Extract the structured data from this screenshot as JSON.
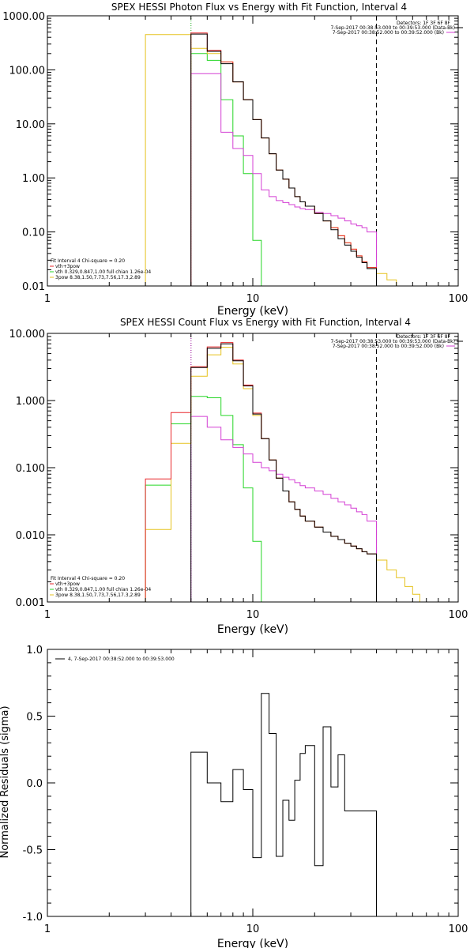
{
  "colors": {
    "red": "#e8262a",
    "green": "#26d626",
    "yellow": "#e6c21e",
    "magenta": "#d43fd4",
    "black": "#000000"
  },
  "chart_data": [
    {
      "type": "line",
      "title": "SPEX HESSI Photon Flux vs Energy with Fit Function, Interval 4",
      "xlabel": "Energy (keV)",
      "ylabel": "",
      "xscale": "log",
      "yscale": "log",
      "xlim": [
        1,
        100
      ],
      "ylim": [
        0.01,
        1000
      ],
      "xticks": [
        "1",
        "10",
        "100"
      ],
      "yticks": [
        "0.01",
        "0.10",
        "1.00",
        "10.00",
        "100.00",
        "1000.00"
      ],
      "header": {
        "detectors": "Detectors: 1F 3F 6F 8F",
        "line1": "7-Sep-2017 00:38:53.000 to 00:39:53.000 (Data-Bk)",
        "line2": "7-Sep-2017 00:38:52.000 to 00:39:52.000 (Bk)"
      },
      "fit_text": {
        "line0": "Fit Interval 4   Chi-square = 0.20",
        "line1": "vth+3pow",
        "line2": "vth 0.329,0.847,1.00  full chian 1.26e-04",
        "line3": "3pow 8.38,1.50,7.73,7.56,17.3,2.89"
      },
      "vlines": [
        {
          "x": 5,
          "style": "dotted",
          "color": "magenta"
        },
        {
          "x": 5,
          "style": "dotted",
          "color": "green"
        },
        {
          "x": 40,
          "style": "dashed",
          "color": "black"
        }
      ],
      "edges": [
        3,
        4,
        5,
        6,
        7,
        8,
        9,
        10,
        11,
        12,
        13,
        14,
        15,
        16,
        17,
        18,
        20,
        22,
        24,
        26,
        28,
        30,
        32,
        34,
        36,
        40,
        45,
        50,
        55,
        60
      ],
      "series": [
        {
          "name": "",
          "color": "green",
          "values": [
            null,
            null,
            200,
            150,
            28,
            6,
            1.2,
            0.07,
            null,
            null,
            null,
            null,
            null,
            null,
            null,
            null,
            null,
            null,
            null,
            null,
            null,
            null,
            null,
            null,
            null,
            null,
            null,
            null,
            null
          ]
        },
        {
          "name": "",
          "color": "magenta",
          "values": [
            null,
            null,
            85,
            85,
            7,
            3.5,
            2.6,
            1.2,
            0.6,
            0.45,
            0.38,
            0.35,
            0.32,
            0.29,
            0.27,
            0.26,
            0.23,
            0.22,
            0.2,
            0.18,
            0.16,
            0.14,
            0.13,
            0.12,
            0.1,
            null,
            null,
            null,
            null
          ]
        },
        {
          "name": "",
          "color": "yellow",
          "values": [
            450,
            450,
            250,
            200,
            140,
            60,
            28,
            12,
            5.5,
            2.8,
            1.4,
            0.95,
            0.65,
            0.45,
            0.36,
            0.3,
            0.22,
            0.16,
            0.12,
            0.085,
            0.063,
            0.048,
            0.036,
            0.028,
            0.022,
            0.017,
            0.013,
            0.01,
            null
          ]
        },
        {
          "name": "",
          "color": "red",
          "values": [
            null,
            null,
            480,
            230,
            140,
            60,
            28,
            12,
            5.5,
            2.8,
            1.4,
            0.95,
            0.65,
            0.45,
            0.36,
            0.3,
            0.22,
            0.16,
            0.12,
            0.085,
            0.063,
            0.048,
            0.036,
            0.028,
            0.022,
            null,
            null,
            null,
            null
          ]
        },
        {
          "name": "",
          "color": "black",
          "values": [
            null,
            null,
            460,
            220,
            130,
            60,
            28,
            12,
            5.5,
            2.8,
            1.4,
            0.95,
            0.65,
            0.45,
            0.36,
            0.3,
            0.22,
            0.16,
            0.11,
            0.075,
            0.057,
            0.044,
            0.034,
            0.027,
            0.021,
            null,
            null,
            null,
            null
          ]
        }
      ]
    },
    {
      "type": "line",
      "title": "SPEX HESSI Count Flux vs Energy with Fit Function, Interval 4",
      "xlabel": "Energy (keV)",
      "ylabel": "",
      "xscale": "log",
      "yscale": "log",
      "xlim": [
        1,
        100
      ],
      "ylim": [
        0.001,
        10
      ],
      "xticks": [
        "1",
        "10",
        "100"
      ],
      "yticks": [
        "0.001",
        "0.010",
        "0.100",
        "1.000",
        "10.000"
      ],
      "header": {
        "detectors": "Detectors: 1F 3F 6F 8F",
        "line1": "7-Sep-2017 00:38:53.000 to 00:39:53.000 (Data-Bk)",
        "line2": "7-Sep-2017 00:38:52.000 to 00:39:52.000 (Bk)"
      },
      "fit_text": {
        "line0": "Fit Interval 4   Chi-square = 0.20",
        "line1": "vth+3pow",
        "line2": "vth 0.329,0.847,1.00  full chian 1.26e-04",
        "line3": "3pow 8.38,1.50,7.73,7.56,17.3,2.89"
      },
      "vlines": [
        {
          "x": 5,
          "style": "dotted",
          "color": "black"
        },
        {
          "x": 5,
          "style": "dotted",
          "color": "magenta"
        },
        {
          "x": 40,
          "style": "dashed",
          "color": "black"
        }
      ],
      "edges": [
        3,
        4,
        5,
        6,
        7,
        8,
        9,
        10,
        11,
        12,
        13,
        14,
        15,
        16,
        17,
        18,
        20,
        22,
        24,
        26,
        28,
        30,
        32,
        34,
        36,
        40,
        45,
        50,
        55,
        60,
        65,
        70,
        75
      ],
      "series": [
        {
          "name": "",
          "color": "green",
          "values": [
            0.055,
            0.45,
            1.15,
            1.1,
            0.6,
            0.22,
            0.05,
            0.008,
            null,
            null,
            null,
            null,
            null,
            null,
            null,
            null,
            null,
            null,
            null,
            null,
            null,
            null,
            null,
            null,
            null,
            null,
            null,
            null,
            null,
            null,
            null,
            null
          ]
        },
        {
          "name": "",
          "color": "magenta",
          "values": [
            null,
            null,
            0.58,
            0.4,
            0.26,
            0.2,
            0.16,
            0.12,
            0.1,
            0.09,
            0.08,
            0.072,
            0.066,
            0.06,
            0.054,
            0.05,
            0.045,
            0.04,
            0.035,
            0.031,
            0.028,
            0.025,
            0.022,
            0.02,
            0.016,
            null,
            null,
            null,
            null,
            null,
            null,
            null
          ]
        },
        {
          "name": "",
          "color": "yellow",
          "values": [
            0.012,
            0.23,
            2.3,
            4.8,
            6.2,
            3.5,
            1.5,
            0.6,
            0.27,
            0.13,
            0.07,
            0.045,
            0.031,
            0.024,
            0.019,
            0.016,
            0.013,
            0.011,
            0.0095,
            0.0085,
            0.0075,
            0.0068,
            0.0062,
            0.0056,
            0.0052,
            0.0042,
            0.003,
            0.0023,
            0.0017,
            0.0013,
            0.001,
            0.001
          ]
        },
        {
          "name": "",
          "color": "red",
          "values": [
            0.068,
            0.66,
            3.2,
            6.3,
            7.3,
            4.0,
            1.7,
            0.65,
            0.27,
            0.13,
            0.07,
            0.045,
            0.031,
            0.024,
            0.019,
            0.016,
            0.013,
            0.011,
            0.0095,
            0.0085,
            0.0075,
            0.0068,
            0.0062,
            0.0056,
            0.0052,
            null,
            null,
            null,
            null,
            null,
            null,
            null
          ]
        },
        {
          "name": "",
          "color": "black",
          "values": [
            null,
            null,
            3.1,
            6.0,
            7.0,
            3.9,
            1.65,
            0.63,
            0.27,
            0.13,
            0.07,
            0.045,
            0.031,
            0.024,
            0.019,
            0.016,
            0.013,
            0.011,
            0.0095,
            0.0085,
            0.0075,
            0.0068,
            0.0062,
            0.0056,
            0.0052,
            null,
            null,
            null,
            null,
            null,
            null,
            null
          ]
        }
      ]
    },
    {
      "type": "line",
      "title": "",
      "xlabel": "Energy (keV)",
      "ylabel": "Normalized Residuals (sigma)",
      "xscale": "log",
      "yscale": "linear",
      "xlim": [
        1,
        100
      ],
      "ylim": [
        -1,
        1
      ],
      "xticks": [
        "1",
        "10",
        "100"
      ],
      "yticks": [
        "-1.0",
        "-0.5",
        "0.0",
        "0.5",
        "1.0"
      ],
      "legend": {
        "label": "4,  7-Sep-2017 00:38:52.000 to 00:39:53.000",
        "color": "black"
      },
      "edges": [
        5,
        6,
        7,
        8,
        9,
        10,
        11,
        12,
        13,
        14,
        15,
        16,
        17,
        18,
        20,
        22,
        24,
        26,
        28,
        30,
        32,
        34,
        36,
        40
      ],
      "series": [
        {
          "name": "",
          "color": "black",
          "values": [
            0.23,
            0.0,
            -0.14,
            0.1,
            -0.05,
            -0.56,
            0.67,
            0.37,
            -0.55,
            -0.13,
            -0.28,
            0.02,
            0.22,
            0.28,
            -0.62,
            0.42,
            -0.03,
            0.21,
            -0.21,
            -0.21,
            -0.21,
            -0.21,
            -0.21
          ],
          "drop_to_bottom": true
        }
      ]
    }
  ]
}
